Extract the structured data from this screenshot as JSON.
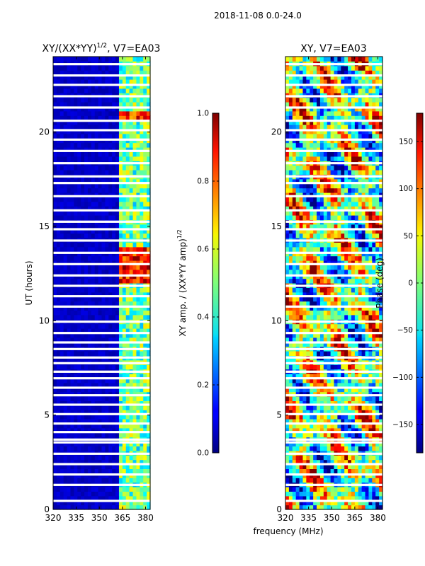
{
  "suptitle": "2018-11-08 0.0-24.0",
  "xlabel_shared": "frequency (MHz)",
  "chart_data": [
    {
      "type": "heatmap",
      "title_main": "XY/(XX*YY)",
      "title_exp": "1/2",
      "title_rest": ", V7=EA03",
      "xlabel": "",
      "ylabel": "UT (hours)",
      "xlim": [
        320,
        383
      ],
      "ylim": [
        0,
        24
      ],
      "xticks": [
        320,
        335,
        350,
        365,
        380
      ],
      "xtick_labels": [
        "320",
        "335",
        "350",
        "365",
        "380"
      ],
      "yticks": [
        0,
        5,
        10,
        15,
        20
      ],
      "ytick_labels": [
        "0",
        "5",
        "10",
        "15",
        "20"
      ],
      "colormap": "jet",
      "colorbar": {
        "label_main": "XY amp. / (XX*YY amp)",
        "label_exp": "1/2",
        "range": [
          0,
          1
        ],
        "ticks": [
          0.0,
          0.2,
          0.4,
          0.6,
          0.8,
          1.0
        ],
        "tick_labels": [
          "0.0",
          "0.2",
          "0.4",
          "0.6",
          "0.8",
          "1.0"
        ]
      }
    },
    {
      "type": "heatmap",
      "title": "XY, V7=EA03",
      "xlabel": "frequency (MHz)",
      "ylabel": "",
      "xlim": [
        320,
        383
      ],
      "ylim": [
        0,
        24
      ],
      "xticks": [
        320,
        335,
        350,
        365,
        380
      ],
      "xtick_labels": [
        "320",
        "335",
        "350",
        "365",
        "380"
      ],
      "yticks": [
        0,
        5,
        10,
        15,
        20
      ],
      "ytick_labels": [
        "0",
        "5",
        "10",
        "15",
        "20"
      ],
      "colormap": "jet",
      "colorbar": {
        "label": "Phase (deg)",
        "range": [
          -180,
          180
        ],
        "ticks": [
          -150,
          -100,
          -50,
          0,
          50,
          100,
          150
        ],
        "tick_labels": [
          "−150",
          "−100",
          "−50",
          "0",
          "50",
          "100",
          "150"
        ]
      }
    }
  ],
  "gap_bands_hours": [
    0.45,
    1.3,
    1.85,
    2.4,
    2.95,
    3.55,
    3.7,
    4.1,
    4.55,
    5.05,
    5.55,
    6.05,
    6.45,
    6.95,
    7.3,
    7.75,
    8.05,
    8.5,
    8.85,
    9.35,
    9.95,
    10.75,
    11.3,
    11.85,
    12.4,
    13.0,
    13.6,
    14.25,
    14.85,
    15.25,
    15.85,
    16.6,
    17.3,
    17.65,
    18.35,
    19.0,
    19.6,
    20.1,
    20.6,
    21.3,
    21.9,
    22.5,
    23.0,
    23.6
  ]
}
